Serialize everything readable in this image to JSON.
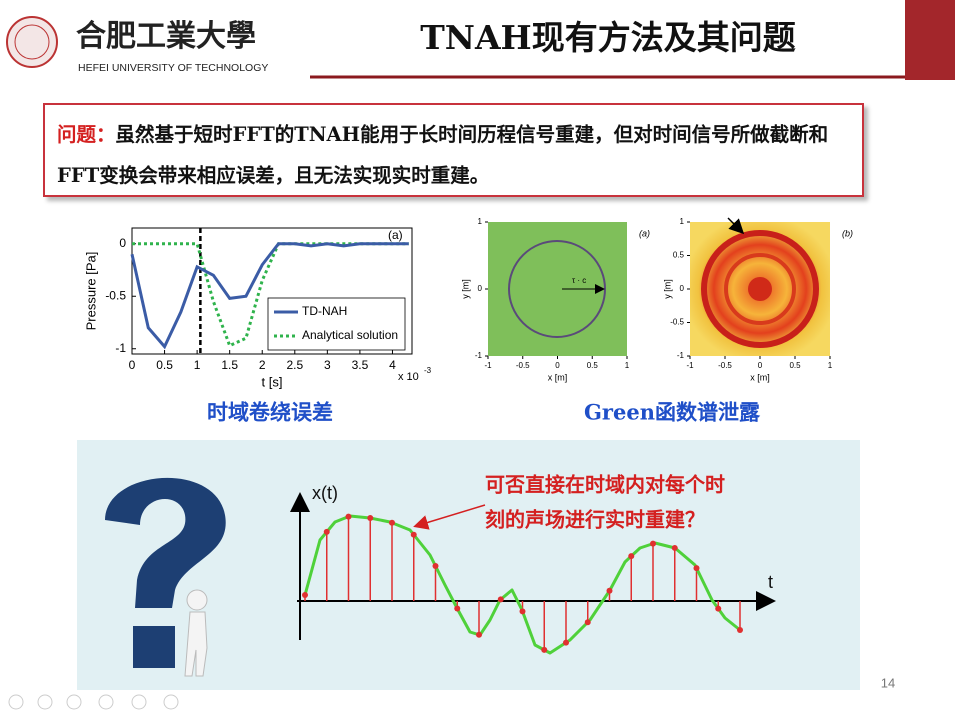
{
  "header": {
    "university_cn": "合肥工業大學",
    "university_en": "HEFEI UNIVERSITY OF TECHNOLOGY",
    "title": "TNAH现有方法及其问题"
  },
  "problem": {
    "label": "问题：",
    "text": "虽然基于短时FFT的TNAH能用于长时间历程信号重建，但对时间信号所做截断和FFT变换会带来相应误差，且无法实现实时重建。"
  },
  "chart_data": {
    "type": "line",
    "tag": "(a)",
    "x_label": "t [s]",
    "y_label": "Pressure [Pa]",
    "x_multiplier": {
      "base": "x 10",
      "exponent": "-3"
    },
    "x": [
      0,
      0.25,
      0.5,
      0.75,
      1.0,
      1.25,
      1.5,
      1.75,
      2.0,
      2.25,
      2.5,
      2.75,
      3.0,
      3.25,
      3.5,
      3.75,
      4.0,
      4.25
    ],
    "series": [
      {
        "name": "TD-NAH",
        "color": "#3b5ca6",
        "dash": "solid",
        "values": [
          -0.1,
          -0.8,
          -0.98,
          -0.65,
          -0.22,
          -0.3,
          -0.52,
          -0.5,
          -0.2,
          0.0,
          0.0,
          -0.02,
          0.0,
          -0.02,
          0.0,
          0.0,
          0.0,
          0.0
        ]
      },
      {
        "name": "Analytical solution",
        "color": "#2fb34c",
        "dash": "dotted",
        "values": [
          0,
          0,
          0,
          0,
          0,
          -0.55,
          -0.97,
          -0.9,
          -0.35,
          0,
          0,
          0,
          0,
          0,
          0,
          0,
          0,
          0
        ]
      }
    ],
    "vline_x": 1.05,
    "xlim": [
      0,
      4.3
    ],
    "ylim": [
      -1.05,
      0.15
    ],
    "xticks": [
      0,
      0.5,
      1,
      1.5,
      2,
      2.5,
      3,
      3.5,
      4
    ],
    "yticks": [
      0,
      -0.5,
      -1
    ],
    "legend": "lower right"
  },
  "caption_a": "时域卷绕误差",
  "figure_b": {
    "panels": [
      {
        "tag": "(a)",
        "annotation": "τ · c",
        "x_label": "x [m]",
        "y_label": "y [m]",
        "xlim": [
          -1,
          1
        ],
        "ylim": [
          -1,
          1
        ],
        "xticks": [
          -1,
          -0.5,
          0,
          0.5,
          1
        ],
        "yticks": [
          1,
          0,
          -1
        ]
      },
      {
        "tag": "(b)",
        "x_label": "x [m]",
        "y_label": "y [m]",
        "xlim": [
          -1,
          1
        ],
        "ylim": [
          -1,
          1
        ],
        "xticks": [
          -1,
          -0.5,
          0,
          0.5,
          1
        ],
        "yticks": [
          1,
          0.5,
          0,
          -0.5,
          -1
        ]
      }
    ]
  },
  "caption_b": "Green函数谱泄露",
  "illustration": {
    "y_label": "x(t)",
    "x_label": "t",
    "question": [
      "可否直接在时域内对每个时",
      "刻的声场进行实时重建？"
    ]
  },
  "page_number": "14"
}
